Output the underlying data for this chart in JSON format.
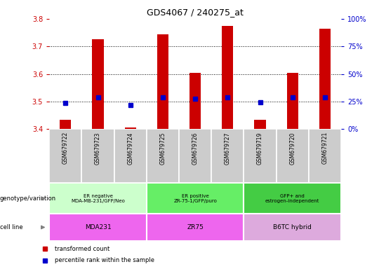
{
  "title": "GDS4067 / 240275_at",
  "samples": [
    "GSM679722",
    "GSM679723",
    "GSM679724",
    "GSM679725",
    "GSM679726",
    "GSM679727",
    "GSM679719",
    "GSM679720",
    "GSM679721"
  ],
  "red_bar_values": [
    3.435,
    3.725,
    3.405,
    3.745,
    3.605,
    3.775,
    3.435,
    3.605,
    3.765
  ],
  "blue_marker_values": [
    3.495,
    3.515,
    3.487,
    3.515,
    3.51,
    3.515,
    3.498,
    3.515,
    3.515
  ],
  "ylim": [
    3.4,
    3.8
  ],
  "y2lim": [
    0,
    100
  ],
  "yticks": [
    3.4,
    3.5,
    3.6,
    3.7,
    3.8
  ],
  "y2ticks": [
    0,
    25,
    50,
    75,
    100
  ],
  "y2ticklabels": [
    "0%",
    "25%",
    "50%",
    "75%",
    "100%"
  ],
  "bar_bottom": 3.4,
  "groups": [
    {
      "label": "ER negative\nMDA-MB-231/GFP/Neo",
      "start": 0,
      "end": 3,
      "color": "#ccffcc"
    },
    {
      "label": "ER positive\nZR-75-1/GFP/puro",
      "start": 3,
      "end": 6,
      "color": "#66ee66"
    },
    {
      "label": "GFP+ and\nestrogen-independent",
      "start": 6,
      "end": 9,
      "color": "#44cc44"
    }
  ],
  "cell_lines": [
    {
      "label": "MDA231",
      "start": 0,
      "end": 3,
      "color": "#ee66ee"
    },
    {
      "label": "ZR75",
      "start": 3,
      "end": 6,
      "color": "#ee66ee"
    },
    {
      "label": "B6TC hybrid",
      "start": 6,
      "end": 9,
      "color": "#ddaadd"
    }
  ],
  "bar_color": "#cc0000",
  "marker_color": "#0000cc",
  "tick_color_left": "#cc0000",
  "tick_color_right": "#0000cc",
  "background_color": "#ffffff",
  "grid_color": "#000000",
  "sample_bg_color": "#cccccc",
  "legend_red_label": "transformed count",
  "legend_blue_label": "percentile rank within the sample",
  "genotype_label": "genotype/variation",
  "cellline_label": "cell line"
}
